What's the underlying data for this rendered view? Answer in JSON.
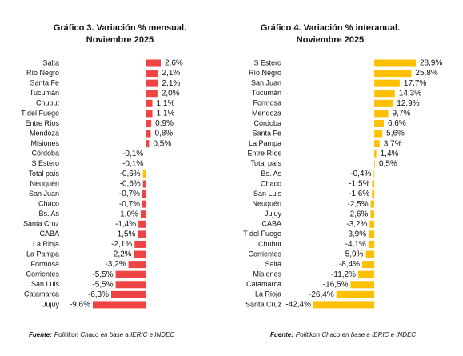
{
  "chart_data": [
    {
      "type": "bar",
      "orientation": "horizontal",
      "title": "Gráfico 3. Variación % mensual.",
      "subtitle": "Noviembre 2025",
      "categories": [
        "Salta",
        "Río Negro",
        "Santa Fe",
        "Tucumán",
        "Chubut",
        "T del Fuego",
        "Entre Ríos",
        "Mendoza",
        "Misiones",
        "Córdoba",
        "S Estero",
        "Total país",
        "Neuquén",
        "San Juan",
        "Chaco",
        "Bs. As",
        "Santa Cruz",
        "CABA",
        "La Rioja",
        "La Pampa",
        "Formosa",
        "Corrientes",
        "San Luis",
        "Catamarca",
        "Jujuy"
      ],
      "values": [
        2.6,
        2.1,
        2.1,
        2.0,
        1.1,
        1.1,
        0.9,
        0.8,
        0.5,
        -0.1,
        -0.1,
        -0.6,
        -0.6,
        -0.7,
        -0.7,
        -1.0,
        -1.4,
        -1.5,
        -2.1,
        -2.2,
        -3.2,
        -5.5,
        -5.5,
        -6.3,
        -9.6
      ],
      "value_labels": [
        "2,6%",
        "2,1%",
        "2,1%",
        "2,0%",
        "1,1%",
        "1,1%",
        "0,9%",
        "0,8%",
        "0,5%",
        "-0,1%",
        "-0,1%",
        "-0,6%",
        "-0,6%",
        "-0,7%",
        "-0,7%",
        "-1,0%",
        "-1,4%",
        "-1,5%",
        "-2,1%",
        "-2,2%",
        "-3,2%",
        "-5,5%",
        "-5,5%",
        "-6,3%",
        "-9,6%"
      ],
      "color": "#ee4444",
      "highlight_category": "Total país",
      "highlight_color": "#ffc000",
      "source_label": "Fuente:",
      "source_text": "Politikon Chaco en base a IERIC e INDEC"
    },
    {
      "type": "bar",
      "orientation": "horizontal",
      "title": "Gráfico 4. Variación % interanual.",
      "subtitle": "Noviembre 2025",
      "categories": [
        "S Estero",
        "Río Negro",
        "San Juan",
        "Tucumán",
        "Formosa",
        "Mendoza",
        "Córdoba",
        "Santa Fe",
        "La Pampa",
        "Entre Ríos",
        "Total país",
        "Bs. As",
        "Chaco",
        "San Luis",
        "Neuquén",
        "Jujuy",
        "CABA",
        "T del Fuego",
        "Chubut",
        "Corrientes",
        "Salta",
        "Misiones",
        "Catamarca",
        "La Rioja",
        "Santa Cruz"
      ],
      "values": [
        28.9,
        25.8,
        17.7,
        14.3,
        12.9,
        9.7,
        6.6,
        5.6,
        3.7,
        1.4,
        0.5,
        -0.4,
        -1.5,
        -1.6,
        -2.5,
        -2.6,
        -3.2,
        -3.9,
        -4.1,
        -5.9,
        -8.4,
        -11.2,
        -16.5,
        -26.4,
        -42.4
      ],
      "value_labels": [
        "28,9%",
        "25,8%",
        "17,7%",
        "14,3%",
        "12,9%",
        "9,7%",
        "6,6%",
        "5,6%",
        "3,7%",
        "1,4%",
        "0,5%",
        "-0,4%",
        "-1,5%",
        "-1,6%",
        "-2,5%",
        "-2,6%",
        "-3,2%",
        "-3,9%",
        "-4,1%",
        "-5,9%",
        "-8,4%",
        "-11,2%",
        "-16,5%",
        "-26,4%",
        "-42,4%"
      ],
      "color": "#ffc000",
      "source_label": "Fuente:",
      "source_text": "Politikon Chaco en base a IERIC e INDEC"
    }
  ]
}
